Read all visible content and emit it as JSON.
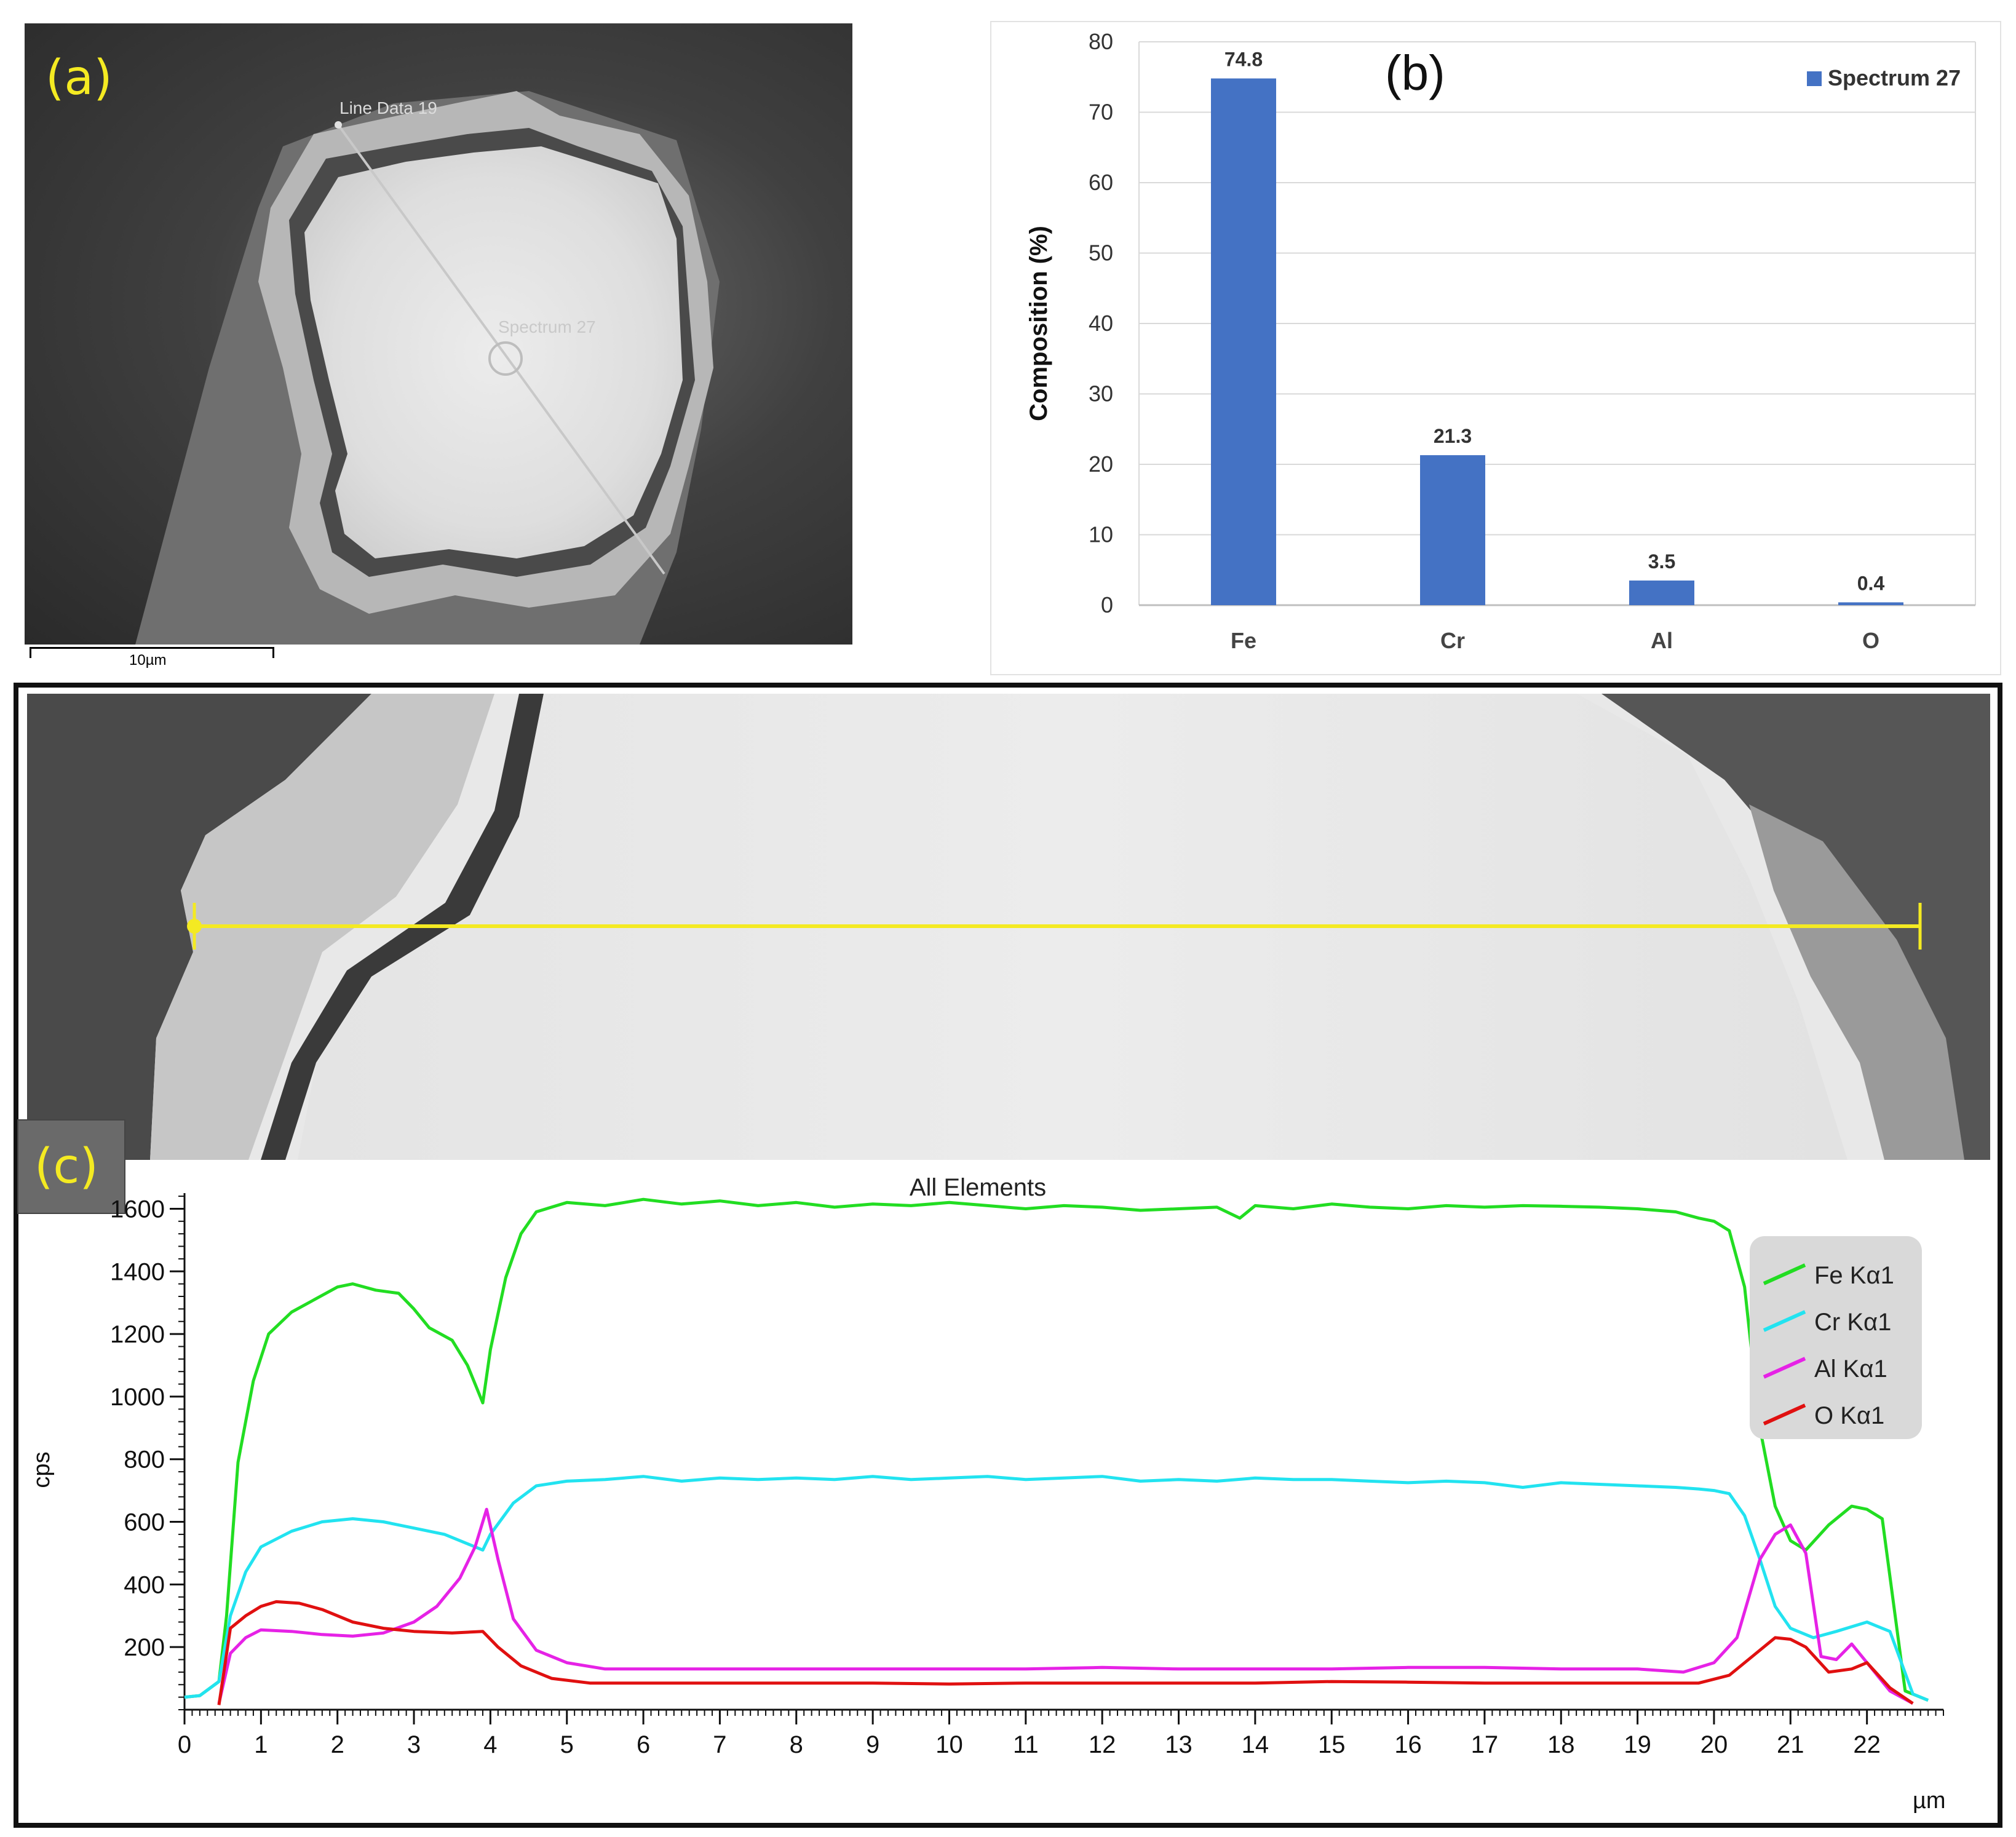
{
  "panel_a": {
    "label": "(a)",
    "line_label": "Line Data 19",
    "spectrum_label": "Spectrum 27",
    "scale_label": "10µm"
  },
  "panel_c": {
    "label": "(c)",
    "chart_title": "All Elements"
  },
  "colors": {
    "bar": "#4472c4",
    "fe": "#22dd22",
    "cr": "#22e3f0",
    "al": "#e622e6",
    "o": "#e01010",
    "line_yellow": "#f4ea22"
  },
  "chart_data": [
    {
      "type": "bar",
      "title": "(b)",
      "categories": [
        "Fe",
        "Cr",
        "Al",
        "O"
      ],
      "series": [
        {
          "name": "Spectrum 27",
          "values": [
            74.8,
            21.3,
            3.5,
            0.4
          ]
        }
      ],
      "data_labels": [
        "74.8",
        "21.3",
        "3.5",
        "0.4"
      ],
      "xlabel": "",
      "ylabel": "Composition (%)",
      "ylim": [
        0,
        80
      ],
      "yticks": [
        0,
        10,
        20,
        30,
        40,
        50,
        60,
        70,
        80
      ],
      "grid": true,
      "legend": "top-right"
    },
    {
      "type": "line",
      "title": "All Elements",
      "xlabel": "µm",
      "ylabel": "cps",
      "xlim": [
        0,
        23
      ],
      "ylim": [
        0,
        1650
      ],
      "xticks": [
        0,
        1,
        2,
        3,
        4,
        5,
        6,
        7,
        8,
        9,
        10,
        11,
        12,
        13,
        14,
        15,
        16,
        17,
        18,
        19,
        20,
        21,
        22
      ],
      "yticks": [
        200,
        400,
        600,
        800,
        1000,
        1200,
        1400,
        1600
      ],
      "legend": "right",
      "series": [
        {
          "name": "Fe Kα1",
          "color": "#22dd22",
          "x": [
            0,
            0.2,
            0.45,
            0.55,
            0.7,
            0.9,
            1.1,
            1.4,
            1.7,
            2.0,
            2.2,
            2.5,
            2.8,
            3.0,
            3.2,
            3.5,
            3.7,
            3.9,
            4.0,
            4.2,
            4.4,
            4.6,
            5.0,
            5.5,
            6.0,
            6.5,
            7.0,
            7.5,
            8.0,
            8.5,
            9.0,
            9.5,
            10.0,
            10.5,
            11.0,
            11.5,
            12.0,
            12.5,
            13.0,
            13.5,
            13.8,
            14.0,
            14.5,
            15.0,
            15.5,
            16.0,
            16.5,
            17.0,
            17.5,
            18.0,
            18.5,
            19.0,
            19.5,
            19.8,
            20.0,
            20.2,
            20.4,
            20.6,
            20.8,
            21.0,
            21.2,
            21.5,
            21.8,
            22.0,
            22.2,
            22.5,
            22.8
          ],
          "y": [
            40,
            45,
            90,
            300,
            790,
            1050,
            1200,
            1270,
            1310,
            1350,
            1360,
            1340,
            1330,
            1280,
            1220,
            1180,
            1100,
            980,
            1150,
            1380,
            1520,
            1590,
            1620,
            1610,
            1630,
            1615,
            1625,
            1610,
            1620,
            1605,
            1615,
            1610,
            1620,
            1610,
            1600,
            1610,
            1605,
            1595,
            1600,
            1605,
            1570,
            1610,
            1600,
            1615,
            1605,
            1600,
            1610,
            1605,
            1610,
            1608,
            1605,
            1600,
            1590,
            1570,
            1560,
            1530,
            1350,
            900,
            650,
            540,
            510,
            590,
            650,
            640,
            610,
            60,
            30
          ]
        },
        {
          "name": "Cr Kα1",
          "color": "#22e3f0",
          "x": [
            0,
            0.2,
            0.45,
            0.6,
            0.8,
            1.0,
            1.4,
            1.8,
            2.2,
            2.6,
            3.0,
            3.4,
            3.7,
            3.9,
            4.0,
            4.3,
            4.6,
            5.0,
            5.5,
            6.0,
            6.5,
            7.0,
            7.5,
            8.0,
            8.5,
            9.0,
            9.5,
            10.0,
            10.5,
            11.0,
            11.5,
            12.0,
            12.5,
            13.0,
            13.5,
            14.0,
            14.5,
            15.0,
            15.5,
            16.0,
            16.5,
            17.0,
            17.5,
            18.0,
            18.5,
            19.0,
            19.5,
            19.8,
            20.0,
            20.2,
            20.4,
            20.6,
            20.8,
            21.0,
            21.3,
            21.6,
            22.0,
            22.3,
            22.6,
            22.8
          ],
          "y": [
            40,
            45,
            90,
            300,
            440,
            520,
            570,
            600,
            610,
            600,
            580,
            560,
            530,
            510,
            560,
            660,
            715,
            730,
            735,
            745,
            730,
            740,
            735,
            740,
            735,
            745,
            735,
            740,
            745,
            735,
            740,
            745,
            730,
            735,
            730,
            740,
            735,
            735,
            730,
            725,
            730,
            725,
            710,
            725,
            720,
            715,
            710,
            705,
            700,
            690,
            620,
            480,
            330,
            260,
            230,
            250,
            280,
            250,
            50,
            30
          ]
        },
        {
          "name": "Al Kα1",
          "color": "#e622e6",
          "x": [
            0.45,
            0.6,
            0.8,
            1.0,
            1.4,
            1.8,
            2.2,
            2.6,
            3.0,
            3.3,
            3.6,
            3.8,
            3.95,
            4.1,
            4.3,
            4.6,
            5.0,
            5.5,
            6.0,
            7.0,
            8.0,
            9.0,
            10.0,
            11.0,
            12.0,
            13.0,
            14.0,
            15.0,
            16.0,
            17.0,
            18.0,
            19.0,
            19.6,
            20.0,
            20.3,
            20.6,
            20.8,
            21.0,
            21.2,
            21.4,
            21.6,
            21.8,
            22.0,
            22.3,
            22.6
          ],
          "y": [
            20,
            180,
            230,
            255,
            250,
            240,
            235,
            245,
            280,
            330,
            420,
            520,
            640,
            480,
            290,
            190,
            150,
            130,
            130,
            130,
            130,
            130,
            130,
            130,
            135,
            130,
            130,
            130,
            135,
            135,
            130,
            130,
            120,
            150,
            230,
            480,
            560,
            590,
            500,
            170,
            160,
            210,
            150,
            60,
            20
          ]
        },
        {
          "name": "O Kα1",
          "color": "#e01010",
          "x": [
            0.45,
            0.6,
            0.8,
            1.0,
            1.2,
            1.5,
            1.8,
            2.2,
            2.6,
            3.0,
            3.5,
            3.9,
            4.1,
            4.4,
            4.8,
            5.3,
            6.0,
            7.0,
            8.0,
            9.0,
            10.0,
            11.0,
            12.0,
            13.0,
            14.0,
            15.0,
            16.0,
            17.0,
            18.0,
            19.0,
            19.8,
            20.2,
            20.5,
            20.8,
            21.0,
            21.2,
            21.5,
            21.8,
            22.0,
            22.3,
            22.6
          ],
          "y": [
            15,
            260,
            300,
            330,
            345,
            340,
            320,
            280,
            260,
            250,
            245,
            250,
            200,
            140,
            100,
            85,
            85,
            85,
            85,
            85,
            82,
            85,
            85,
            85,
            85,
            90,
            88,
            85,
            85,
            85,
            85,
            110,
            170,
            230,
            225,
            200,
            120,
            130,
            150,
            70,
            20
          ]
        }
      ]
    }
  ]
}
